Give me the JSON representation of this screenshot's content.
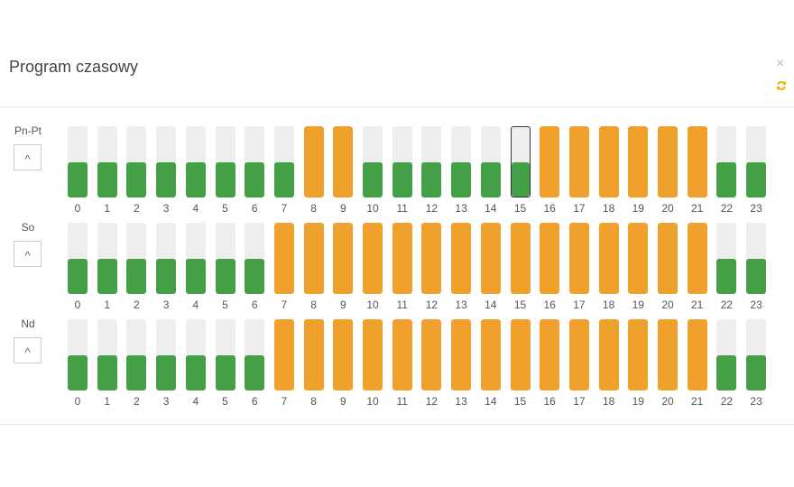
{
  "header": {
    "title": "Program czasowy",
    "close": "×"
  },
  "hours": [
    "0",
    "1",
    "2",
    "3",
    "4",
    "5",
    "6",
    "7",
    "8",
    "9",
    "10",
    "11",
    "12",
    "13",
    "14",
    "15",
    "16",
    "17",
    "18",
    "19",
    "20",
    "21",
    "22",
    "23"
  ],
  "colors": {
    "low": "#43a047",
    "high": "#f0a02c",
    "empty": "#eeeeee"
  },
  "rows": [
    {
      "label": "Pn-Pt",
      "toggle": "^",
      "high": [
        false,
        false,
        false,
        false,
        false,
        false,
        false,
        false,
        true,
        true,
        false,
        false,
        false,
        false,
        false,
        false,
        true,
        true,
        true,
        true,
        true,
        true,
        false,
        false
      ],
      "selected": 15
    },
    {
      "label": "So",
      "toggle": "^",
      "high": [
        false,
        false,
        false,
        false,
        false,
        false,
        false,
        true,
        true,
        true,
        true,
        true,
        true,
        true,
        true,
        true,
        true,
        true,
        true,
        true,
        true,
        true,
        false,
        false
      ]
    },
    {
      "label": "Nd",
      "toggle": "^",
      "high": [
        false,
        false,
        false,
        false,
        false,
        false,
        false,
        true,
        true,
        true,
        true,
        true,
        true,
        true,
        true,
        true,
        true,
        true,
        true,
        true,
        true,
        true,
        false,
        false
      ]
    }
  ]
}
